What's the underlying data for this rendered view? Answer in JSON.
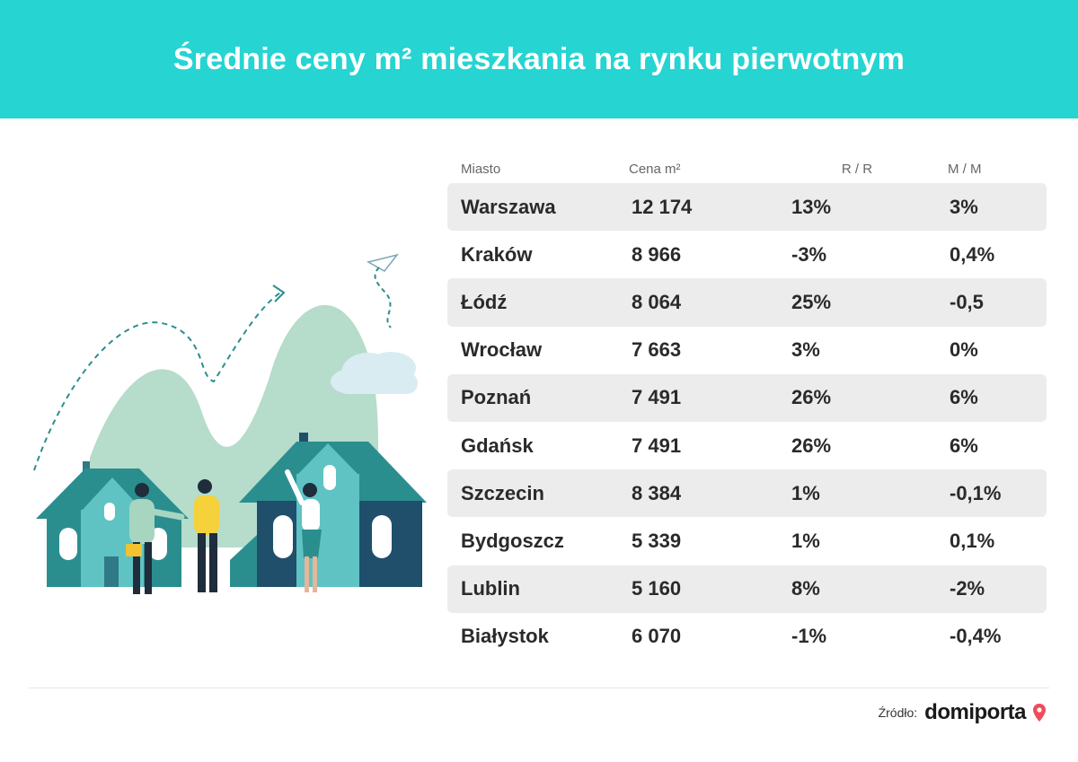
{
  "header": {
    "title": "Średnie ceny m² mieszkania na rynku pierwotnym"
  },
  "colors": {
    "header_bg": "#26d4d2",
    "row_shade": "#ececec",
    "brand_pin": "#f04b5a"
  },
  "chart_data": {
    "type": "table",
    "title": "Średnie ceny m² mieszkania na rynku pierwotnym",
    "columns": [
      "Miasto",
      "Cena m²",
      "R / R",
      "M / M"
    ],
    "rows": [
      [
        "Warszawa",
        "12 174",
        "13%",
        "3%"
      ],
      [
        "Kraków",
        "8 966",
        "-3%",
        "0,4%"
      ],
      [
        "Łódź",
        "8 064",
        "25%",
        "-0,5"
      ],
      [
        "Wrocław",
        "7 663",
        "3%",
        "0%"
      ],
      [
        "Poznań",
        "7 491",
        "26%",
        "6%"
      ],
      [
        "Gdańsk",
        "7 491",
        "26%",
        "6%"
      ],
      [
        "Szczecin",
        "8 384",
        "1%",
        "-0,1%"
      ],
      [
        "Bydgoszcz",
        "5 339",
        "1%",
        "0,1%"
      ],
      [
        "Lublin",
        "5 160",
        "8%",
        "-2%"
      ],
      [
        "Białystok",
        "6 070",
        "-1%",
        "-0,4%"
      ]
    ]
  },
  "footer": {
    "source_label": "Źródło:",
    "brand": "domiporta"
  }
}
